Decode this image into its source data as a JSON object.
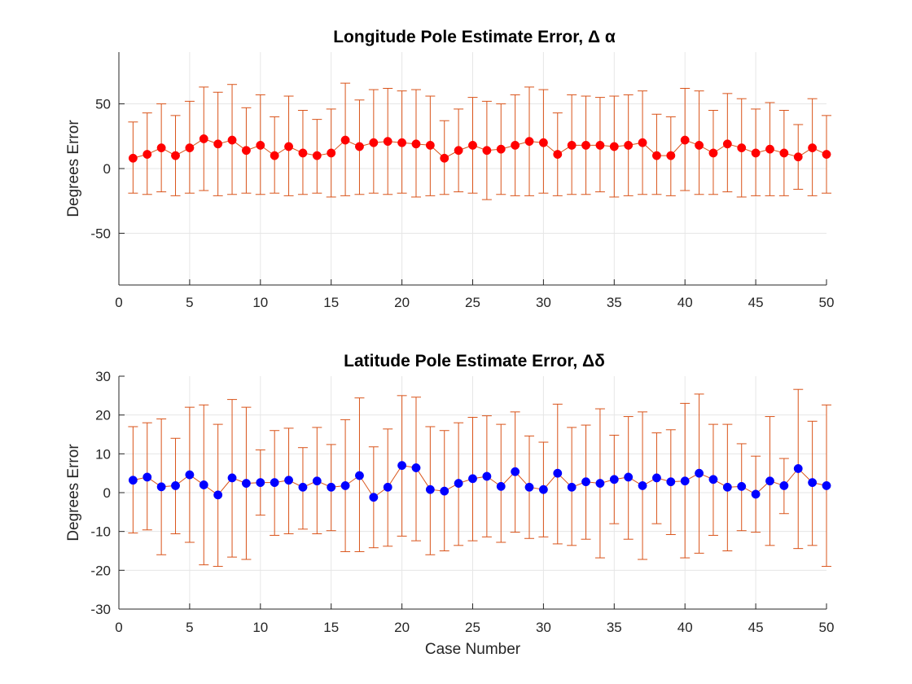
{
  "chart_data": [
    {
      "type": "line",
      "title": "Longitude Pole Estimate Error, Δ α",
      "xlabel": "",
      "ylabel": "Degrees Error",
      "xlim": [
        0,
        50
      ],
      "ylim": [
        -90,
        90
      ],
      "xticks": [
        0,
        5,
        10,
        15,
        20,
        25,
        30,
        35,
        40,
        45,
        50
      ],
      "yticks": [
        -50,
        0,
        50
      ],
      "grid": true,
      "colors": {
        "marker": "#ff0000",
        "line": "#d95319",
        "errorbar": "#d95319"
      },
      "series": [
        {
          "x": [
            1,
            2,
            3,
            4,
            5,
            6,
            7,
            8,
            9,
            10,
            11,
            12,
            13,
            14,
            15,
            16,
            17,
            18,
            19,
            20,
            21,
            22,
            23,
            24,
            25,
            26,
            27,
            28,
            29,
            30,
            31,
            32,
            33,
            34,
            35,
            36,
            37,
            38,
            39,
            40,
            41,
            42,
            43,
            44,
            45,
            46,
            47,
            48,
            49,
            50
          ],
          "y": [
            8,
            11,
            16,
            10,
            16,
            23,
            19,
            22,
            14,
            18,
            10,
            17,
            12,
            10,
            12,
            22,
            17,
            20,
            21,
            20,
            19,
            18,
            8,
            14,
            18,
            14,
            15,
            18,
            21,
            20,
            11,
            18,
            18,
            18,
            17,
            18,
            20,
            10,
            10,
            22,
            18,
            12,
            19,
            16,
            12,
            15,
            12,
            9,
            16,
            11
          ],
          "upper": [
            36,
            43,
            50,
            41,
            52,
            63,
            59,
            65,
            47,
            57,
            40,
            56,
            45,
            38,
            46,
            66,
            53,
            61,
            62,
            60,
            61,
            56,
            37,
            46,
            55,
            52,
            50,
            57,
            63,
            61,
            43,
            57,
            56,
            55,
            56,
            57,
            60,
            42,
            40,
            62,
            60,
            45,
            58,
            54,
            46,
            51,
            45,
            34,
            54,
            41
          ],
          "lower": [
            -19,
            -20,
            -18,
            -21,
            -19,
            -17,
            -21,
            -20,
            -19,
            -20,
            -19,
            -21,
            -20,
            -19,
            -22,
            -21,
            -20,
            -19,
            -20,
            -19,
            -22,
            -21,
            -20,
            -18,
            -19,
            -24,
            -20,
            -21,
            -21,
            -19,
            -21,
            -20,
            -20,
            -18,
            -22,
            -21,
            -20,
            -20,
            -21,
            -17,
            -20,
            -20,
            -18,
            -22,
            -21,
            -21,
            -21,
            -16,
            -21,
            -19
          ]
        }
      ]
    },
    {
      "type": "line",
      "title": "Latitude Pole Estimate Error, Δδ",
      "xlabel": "Case Number",
      "ylabel": "Degrees Error",
      "xlim": [
        0,
        50
      ],
      "ylim": [
        -30,
        30
      ],
      "xticks": [
        0,
        5,
        10,
        15,
        20,
        25,
        30,
        35,
        40,
        45,
        50
      ],
      "yticks": [
        -30,
        -20,
        -10,
        0,
        10,
        20,
        30
      ],
      "grid": true,
      "colors": {
        "marker": "#0000ff",
        "line": "#d95319",
        "errorbar": "#d95319"
      },
      "series": [
        {
          "x": [
            1,
            2,
            3,
            4,
            5,
            6,
            7,
            8,
            9,
            10,
            11,
            12,
            13,
            14,
            15,
            16,
            17,
            18,
            19,
            20,
            21,
            22,
            23,
            24,
            25,
            26,
            27,
            28,
            29,
            30,
            31,
            32,
            33,
            34,
            35,
            36,
            37,
            38,
            39,
            40,
            41,
            42,
            43,
            44,
            45,
            46,
            47,
            48,
            49,
            50
          ],
          "y": [
            3.2,
            4.0,
            1.5,
            1.8,
            4.6,
            2.0,
            -0.6,
            3.8,
            2.4,
            2.6,
            2.6,
            3.2,
            1.4,
            3.0,
            1.4,
            1.8,
            4.4,
            -1.2,
            1.4,
            7.0,
            6.4,
            0.8,
            0.4,
            2.4,
            3.6,
            4.2,
            1.6,
            5.4,
            1.4,
            0.8,
            5.0,
            1.4,
            2.8,
            2.4,
            3.4,
            4.0,
            1.8,
            3.8,
            2.8,
            3.0,
            5.0,
            3.4,
            1.4,
            1.6,
            -0.4,
            3.0,
            1.8,
            6.2,
            2.6,
            1.8
          ],
          "upper": [
            17,
            18,
            19,
            14,
            22,
            22.6,
            17.6,
            24,
            22,
            11,
            16,
            16.6,
            11.6,
            16.8,
            12.4,
            18.8,
            24.4,
            11.8,
            16.4,
            25,
            24.6,
            17,
            16,
            18,
            19.4,
            19.8,
            17.6,
            20.8,
            14.6,
            13,
            22.8,
            16.8,
            17.4,
            21.6,
            14.8,
            19.6,
            20.8,
            15.4,
            16.2,
            23,
            25.4,
            17.6,
            17.6,
            12.6,
            9.4,
            19.6,
            8.8,
            26.6,
            18.4,
            22.6
          ],
          "lower": [
            -10.4,
            -9.6,
            -16,
            -10.6,
            -12.8,
            -18.6,
            -19,
            -16.6,
            -17.2,
            -5.8,
            -11,
            -10.6,
            -9.4,
            -10.6,
            -9.8,
            -15.2,
            -15.2,
            -14.2,
            -13.8,
            -11.2,
            -12.4,
            -16,
            -15,
            -13.6,
            -12.4,
            -11.4,
            -12.8,
            -10.2,
            -11.8,
            -11.4,
            -13.2,
            -13.6,
            -12,
            -16.8,
            -8,
            -12,
            -17.2,
            -8,
            -10.8,
            -16.8,
            -15.6,
            -11,
            -15,
            -9.8,
            -10.2,
            -13.6,
            -5.4,
            -14.4,
            -13.6,
            -19
          ]
        }
      ]
    }
  ]
}
